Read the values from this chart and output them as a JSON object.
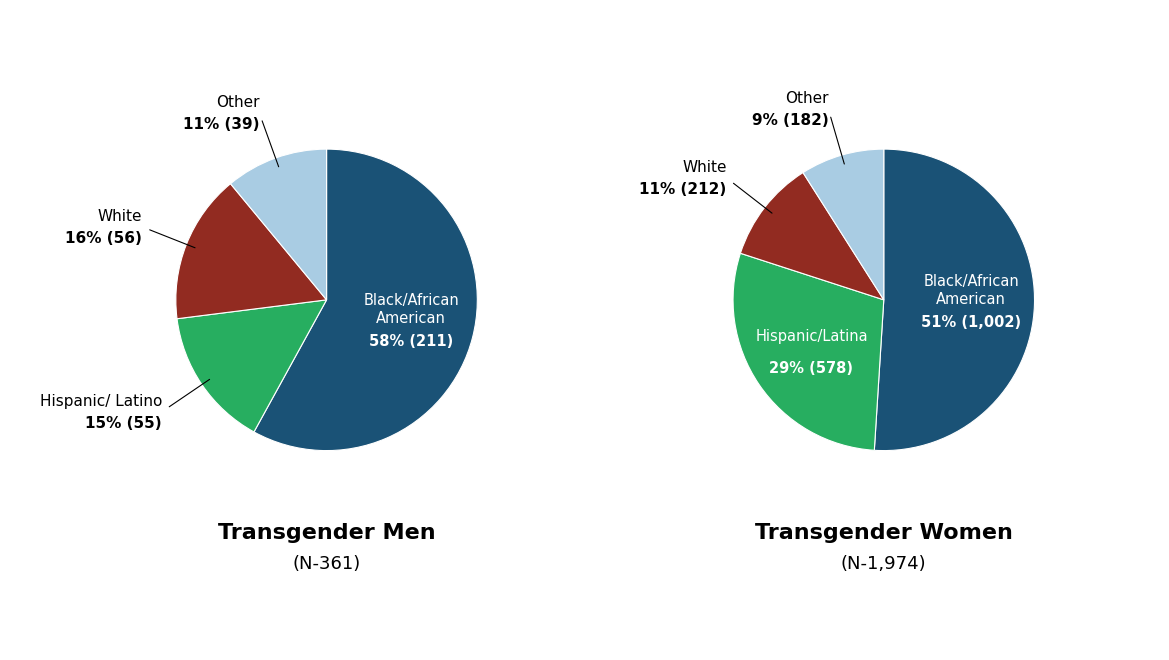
{
  "men": {
    "title": "Transgender Men",
    "subtitle": "(N-361)",
    "slices": [
      {
        "label": "Black/African\nAmerican",
        "pct": 58,
        "count": 211,
        "color": "#1a5276",
        "text_color": "white",
        "inside": true
      },
      {
        "label": "Hispanic/ Latino",
        "pct": 15,
        "count": 55,
        "color": "#27ae60",
        "text_color": "black",
        "inside": false
      },
      {
        "label": "White",
        "pct": 16,
        "count": 56,
        "color": "#922b21",
        "text_color": "black",
        "inside": false
      },
      {
        "label": "Other",
        "pct": 11,
        "count": 39,
        "color": "#a9cce3",
        "text_color": "black",
        "inside": false
      }
    ]
  },
  "women": {
    "title": "Transgender Women",
    "subtitle": "(N-1,974)",
    "slices": [
      {
        "label": "Black/African\nAmerican",
        "pct": 51,
        "count": 1002,
        "color": "#1a5276",
        "text_color": "white",
        "inside": true
      },
      {
        "label": "Hispanic/Latina",
        "pct": 29,
        "count": 578,
        "color": "#27ae60",
        "text_color": "white",
        "inside": true
      },
      {
        "label": "White",
        "pct": 11,
        "count": 212,
        "color": "#922b21",
        "text_color": "black",
        "inside": false
      },
      {
        "label": "Other",
        "pct": 9,
        "count": 182,
        "color": "#a9cce3",
        "text_color": "black",
        "inside": false
      }
    ]
  },
  "background_color": "#ffffff",
  "title_fontsize": 16,
  "subtitle_fontsize": 13,
  "label_fontsize": 11,
  "bold_fontsize": 12
}
